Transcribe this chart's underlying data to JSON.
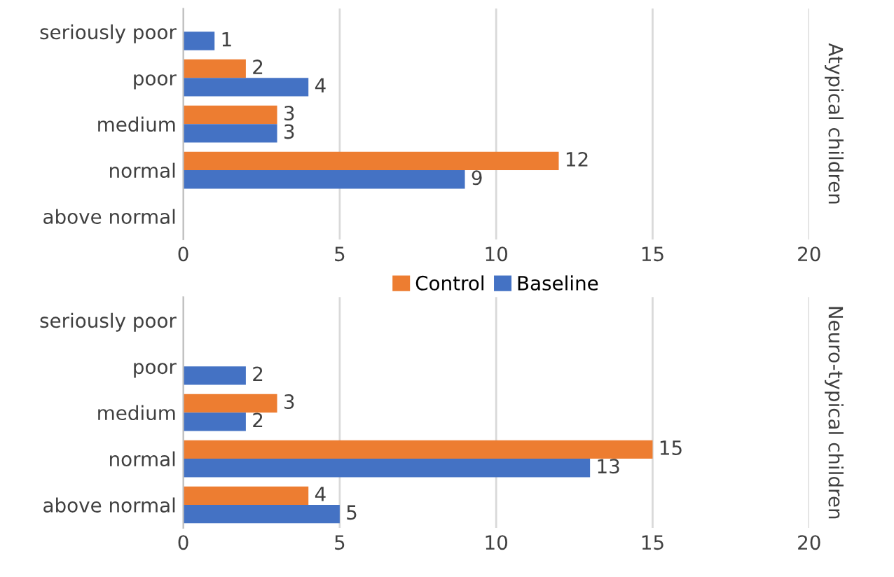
{
  "chart_data": [
    {
      "type": "bar",
      "orientation": "horizontal",
      "y2label": "Atypical children",
      "categories": [
        "seriously poor",
        "poor",
        "medium",
        "normal",
        "above normal"
      ],
      "series": [
        {
          "name": "Control",
          "color": "#ed7d31",
          "values": [
            null,
            2,
            3,
            12,
            null
          ]
        },
        {
          "name": "Baseline",
          "color": "#4472c4",
          "values": [
            1,
            4,
            3,
            9,
            null
          ]
        }
      ],
      "xlim": [
        0,
        20
      ],
      "xticks": [
        0,
        5,
        10,
        15,
        20
      ],
      "grid": "x",
      "legend": "bottom",
      "data_labels": true
    },
    {
      "type": "bar",
      "orientation": "horizontal",
      "y2label": "Neuro-typical children",
      "categories": [
        "seriously poor",
        "poor",
        "medium",
        "normal",
        "above normal"
      ],
      "series": [
        {
          "color": "#ed7d31",
          "values": [
            null,
            null,
            3,
            15,
            4
          ]
        },
        {
          "color": "#4472c4",
          "values": [
            null,
            2,
            2,
            13,
            5
          ]
        }
      ],
      "xlim": [
        0,
        20
      ],
      "xticks": [
        0,
        5,
        10,
        15,
        20
      ],
      "grid": "x",
      "data_labels": true
    }
  ]
}
